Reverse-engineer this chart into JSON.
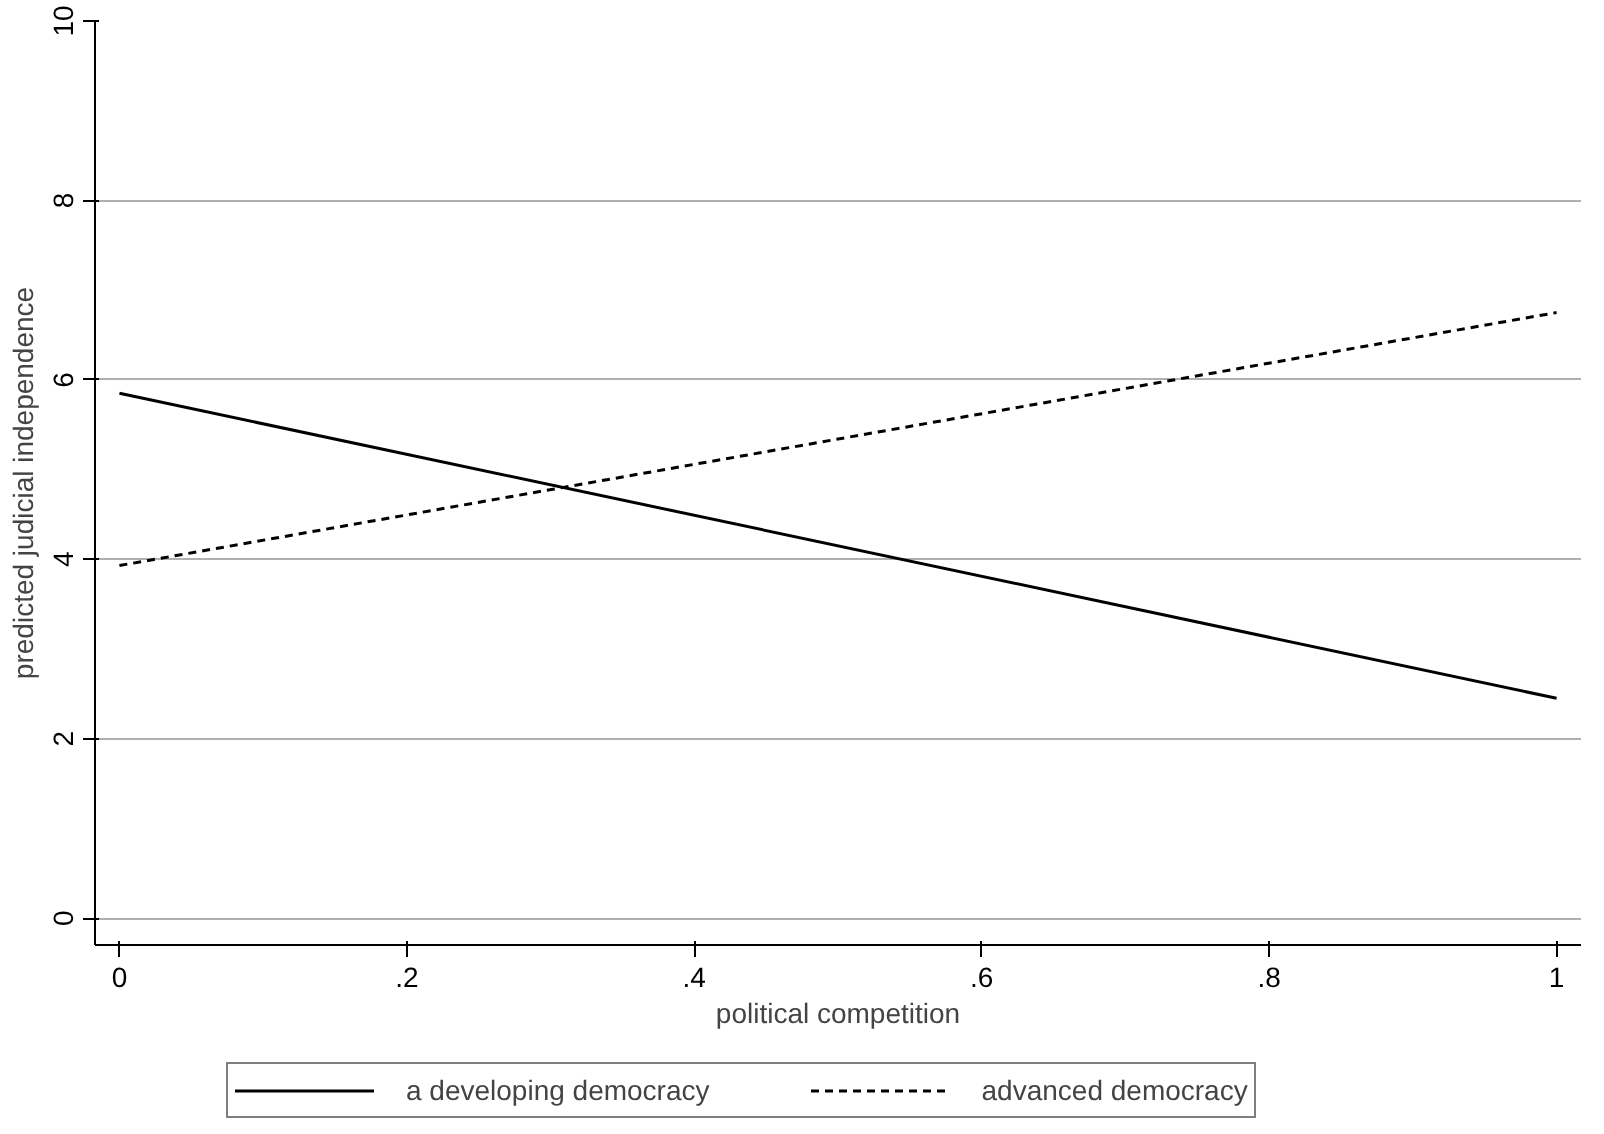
{
  "chart_data": {
    "type": "line",
    "xlabel": "political competition",
    "ylabel": "predicted judicial independence",
    "x": [
      0,
      1
    ],
    "series": [
      {
        "name": "a developing democracy",
        "color": "#000000",
        "values": [
          5.85,
          2.45
        ],
        "line_style": "solid"
      },
      {
        "name": "advanced democracy",
        "color": "#000000",
        "values": [
          3.93,
          6.75
        ],
        "line_style": "dashed"
      }
    ],
    "xlim": [
      -0.017,
      1.017
    ],
    "ylim": [
      -0.3,
      10
    ],
    "xticks": [
      0,
      {
        "value": 0.2,
        "label": ".2"
      },
      {
        "value": 0.4,
        "label": ".4"
      },
      {
        "value": 0.6,
        "label": ".6"
      },
      {
        "value": 0.8,
        "label": ".8"
      },
      1
    ],
    "yticks": [
      0,
      2,
      4,
      6,
      8,
      10
    ],
    "grid": "y",
    "legend": "bottom",
    "marker": "none"
  }
}
